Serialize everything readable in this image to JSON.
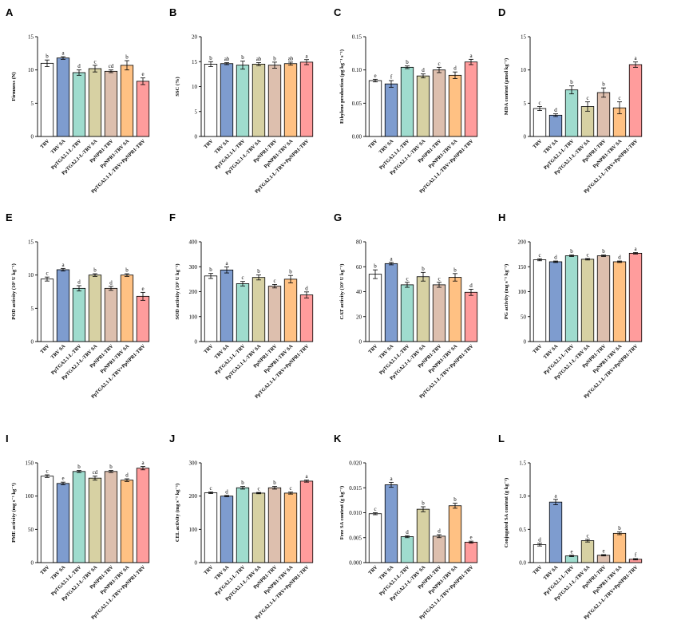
{
  "categories": [
    "TRV",
    "TRV SA",
    "PpTGA2.1-L-TRV",
    "PpTGA2.1-L-TRV SA",
    "PpNPR1-TRV",
    "PpNPR1-TRV SA",
    "PpTGA2.1-L-TRV+PpNPR1-TRV"
  ],
  "bar_colors": [
    "#ffffff",
    "#7e9ccf",
    "#9fdcce",
    "#d7d1a3",
    "#ddbfae",
    "#ffc183",
    "#ff9c9c"
  ],
  "chart_data": [
    {
      "type": "bar",
      "panel": "A",
      "ylabel": "Firmness (N)",
      "ylim": [
        0,
        15
      ],
      "ticks": [
        0,
        5,
        10,
        15
      ],
      "values": [
        11.0,
        11.8,
        9.6,
        10.2,
        9.8,
        10.7,
        8.3
      ],
      "errors": [
        0.5,
        0.2,
        0.4,
        0.5,
        0.2,
        0.7,
        0.5
      ],
      "letters": [
        "b",
        "a",
        "d",
        "c",
        "cd",
        "b",
        "e"
      ]
    },
    {
      "type": "bar",
      "panel": "B",
      "ylabel": "SSC (%)",
      "ylim": [
        0,
        20
      ],
      "ticks": [
        0,
        5,
        10,
        15,
        20
      ],
      "values": [
        14.5,
        14.6,
        14.3,
        14.5,
        14.3,
        14.6,
        14.9
      ],
      "errors": [
        0.5,
        0.2,
        0.8,
        0.3,
        0.6,
        0.3,
        0.5
      ],
      "letters": [
        "b",
        "ab",
        "b",
        "ab",
        "b",
        "ab",
        "a"
      ]
    },
    {
      "type": "bar",
      "panel": "C",
      "ylabel": "Ethylene production (μg kg⁻¹ s⁻¹)",
      "ylim": [
        0,
        0.15
      ],
      "ticks": [
        0.0,
        0.05,
        0.1,
        0.15
      ],
      "tick_labels": [
        "0.00",
        "0.05",
        "0.10",
        "0.15"
      ],
      "values": [
        0.084,
        0.079,
        0.104,
        0.091,
        0.1,
        0.092,
        0.112
      ],
      "errors": [
        0.002,
        0.005,
        0.002,
        0.003,
        0.004,
        0.005,
        0.004
      ],
      "letters": [
        "e",
        "f",
        "b",
        "d",
        "c",
        "d",
        "a"
      ]
    },
    {
      "type": "bar",
      "panel": "D",
      "ylabel": "MDA content (μmol kg⁻¹)",
      "ylim": [
        0,
        15
      ],
      "ticks": [
        0,
        5,
        10,
        15
      ],
      "values": [
        4.2,
        3.2,
        7.0,
        4.5,
        6.6,
        4.3,
        10.8
      ],
      "errors": [
        0.3,
        0.2,
        0.6,
        0.7,
        0.7,
        0.9,
        0.4
      ],
      "letters": [
        "c",
        "d",
        "b",
        "c",
        "b",
        "c",
        "a"
      ]
    },
    {
      "type": "bar",
      "panel": "E",
      "ylabel": "POD activity (10³ U kg⁻¹)",
      "ylim": [
        0,
        15
      ],
      "ticks": [
        0,
        5,
        10,
        15
      ],
      "values": [
        9.4,
        10.8,
        8.0,
        10.0,
        8.0,
        10.0,
        6.8
      ],
      "errors": [
        0.3,
        0.2,
        0.4,
        0.2,
        0.3,
        0.2,
        0.6
      ],
      "letters": [
        "c",
        "a",
        "d",
        "b",
        "d",
        "b",
        "e"
      ]
    },
    {
      "type": "bar",
      "panel": "F",
      "ylabel": "SOD activity (10³ U kg⁻¹)",
      "ylim": [
        0,
        400
      ],
      "ticks": [
        0,
        100,
        200,
        300,
        400
      ],
      "values": [
        263,
        287,
        232,
        257,
        222,
        250,
        187
      ],
      "errors": [
        10,
        12,
        9,
        10,
        7,
        15,
        12
      ],
      "letters": [
        "b",
        "a",
        "c",
        "b",
        "c",
        "b",
        "d"
      ]
    },
    {
      "type": "bar",
      "panel": "G",
      "ylabel": "CAT activity (10³ U kg⁻¹)",
      "ylim": [
        0,
        80
      ],
      "ticks": [
        0,
        20,
        40,
        60,
        80
      ],
      "values": [
        54,
        62.5,
        45.5,
        52,
        45.5,
        51.5,
        39.5
      ],
      "errors": [
        3.5,
        1.0,
        2.0,
        3.5,
        2.0,
        3.0,
        2.5
      ],
      "letters": [
        "b",
        "a",
        "c",
        "b",
        "c",
        "b",
        "d"
      ]
    },
    {
      "type": "bar",
      "panel": "H",
      "ylabel": "PG activity (mg s⁻¹ kg⁻¹)",
      "ylim": [
        0,
        200
      ],
      "ticks": [
        0,
        50,
        100,
        150,
        200
      ],
      "values": [
        164,
        160,
        172,
        165,
        172,
        160,
        177
      ],
      "errors": [
        2,
        1.5,
        1.5,
        1.5,
        1.5,
        1.5,
        1.5
      ],
      "letters": [
        "c",
        "d",
        "b",
        "c",
        "b",
        "d",
        "a"
      ]
    },
    {
      "type": "bar",
      "panel": "I",
      "ylabel": "PME activity (mg s⁻¹ kg⁻¹)",
      "ylim": [
        0,
        150
      ],
      "ticks": [
        0,
        50,
        100,
        150
      ],
      "values": [
        130,
        119,
        137,
        127,
        137,
        124,
        142
      ],
      "errors": [
        2,
        2,
        1.5,
        3,
        1.5,
        2,
        2.5
      ],
      "letters": [
        "c",
        "e",
        "b",
        "cd",
        "b",
        "d",
        "a"
      ]
    },
    {
      "type": "bar",
      "panel": "J",
      "ylabel": "CEL activity (mg s⁻¹ kg⁻¹)",
      "ylim": [
        0,
        300
      ],
      "ticks": [
        0,
        100,
        200,
        300
      ],
      "values": [
        210,
        200,
        225,
        209,
        225,
        209,
        245
      ],
      "errors": [
        2.5,
        2,
        4,
        2,
        4,
        3,
        3
      ],
      "letters": [
        "c",
        "d",
        "b",
        "c",
        "b",
        "c",
        "a"
      ]
    },
    {
      "type": "bar",
      "panel": "K",
      "ylabel": "Free SA content (g kg⁻¹)",
      "ylim": [
        0,
        0.02
      ],
      "ticks": [
        0.0,
        0.005,
        0.01,
        0.015,
        0.02
      ],
      "tick_labels": [
        "0.000",
        "0.005",
        "0.010",
        "0.015",
        "0.020"
      ],
      "values": [
        0.0098,
        0.0156,
        0.0052,
        0.0107,
        0.0053,
        0.0114,
        0.0041
      ],
      "errors": [
        0.0002,
        0.0005,
        0.0002,
        0.0005,
        0.0003,
        0.0005,
        0.0002
      ],
      "letters": [
        "c",
        "a",
        "d",
        "b",
        "d",
        "b",
        "e"
      ]
    },
    {
      "type": "bar",
      "panel": "L",
      "ylabel": "Conjugated SA content (g kg⁻¹)",
      "ylim": [
        0,
        1.5
      ],
      "ticks": [
        0.0,
        0.5,
        1.0,
        1.5
      ],
      "tick_labels": [
        "0.0",
        "0.5",
        "1.0",
        "1.5"
      ],
      "values": [
        0.27,
        0.91,
        0.1,
        0.33,
        0.11,
        0.44,
        0.05
      ],
      "errors": [
        0.02,
        0.04,
        0.01,
        0.02,
        0.01,
        0.02,
        0.01
      ],
      "letters": [
        "d",
        "a",
        "e",
        "c",
        "e",
        "b",
        "f"
      ]
    }
  ]
}
